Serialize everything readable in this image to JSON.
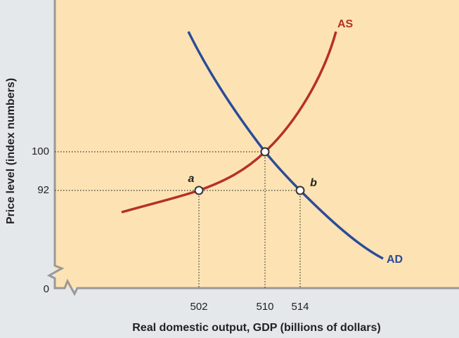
{
  "y_axis": {
    "title": "Price level (index numbers)",
    "ticks": [
      "0",
      "92",
      "100"
    ]
  },
  "x_axis": {
    "title": "Real domestic output, GDP (billions of dollars)",
    "ticks": [
      "502",
      "510",
      "514"
    ]
  },
  "curves": [
    {
      "label": "AS"
    },
    {
      "label": "AD"
    }
  ],
  "points": [
    {
      "label": "a"
    },
    {
      "label": "b"
    }
  ]
}
